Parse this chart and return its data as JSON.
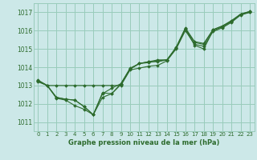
{
  "background_color": "#cce8e8",
  "grid_color": "#99ccbb",
  "line_color": "#2d6b2d",
  "marker_color": "#2d6b2d",
  "title": "Graphe pression niveau de la mer (hPa)",
  "xlim": [
    -0.5,
    23.5
  ],
  "ylim": [
    1010.5,
    1017.5
  ],
  "yticks": [
    1011,
    1012,
    1013,
    1014,
    1015,
    1016,
    1017
  ],
  "xticks": [
    0,
    1,
    2,
    3,
    4,
    5,
    6,
    7,
    8,
    9,
    10,
    11,
    12,
    13,
    14,
    15,
    16,
    17,
    18,
    19,
    20,
    21,
    22,
    23
  ],
  "series": [
    [
      1013.3,
      1013.0,
      1012.3,
      1012.2,
      1011.9,
      1011.7,
      1011.4,
      1012.6,
      1012.55,
      1013.05,
      1013.9,
      1014.2,
      1014.25,
      1014.35,
      1014.4,
      1015.1,
      1016.15,
      1015.4,
      1015.3,
      1016.05,
      1016.25,
      1016.55,
      1016.9,
      1017.05
    ],
    [
      1013.25,
      1013.0,
      1012.35,
      1012.25,
      1012.2,
      1011.85,
      1011.4,
      1012.35,
      1012.55,
      1013.1,
      1013.95,
      1014.2,
      1014.3,
      1014.3,
      1014.4,
      1015.05,
      1016.1,
      1015.2,
      1015.0,
      1016.0,
      1016.2,
      1016.5,
      1016.9,
      1017.0
    ],
    [
      1013.25,
      1013.0,
      1013.0,
      1013.0,
      1013.0,
      1013.0,
      1013.0,
      1013.0,
      1013.0,
      1013.0,
      1013.85,
      1013.95,
      1014.05,
      1014.1,
      1014.35,
      1015.0,
      1016.0,
      1015.25,
      1015.15,
      1015.95,
      1016.15,
      1016.45,
      1016.85,
      1017.0
    ],
    [
      1013.2,
      1013.0,
      1012.35,
      1012.25,
      1012.2,
      1011.85,
      1011.4,
      1012.55,
      1012.85,
      1013.1,
      1013.9,
      1014.2,
      1014.3,
      1014.4,
      1014.4,
      1015.05,
      1016.1,
      1015.35,
      1015.25,
      1016.05,
      1016.25,
      1016.5,
      1016.9,
      1017.05
    ]
  ]
}
